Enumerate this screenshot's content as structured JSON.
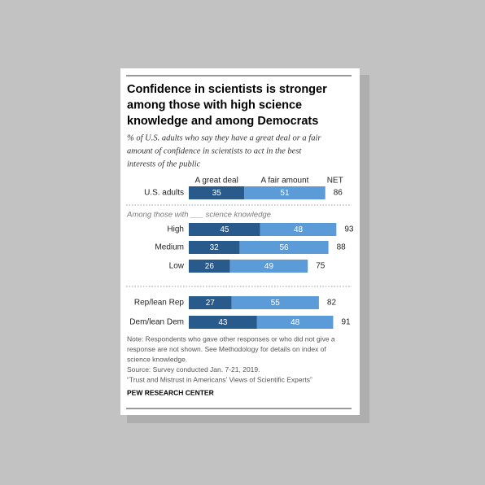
{
  "chart_data": {
    "type": "stacked-bar",
    "title": [
      "Confidence in scientists is stronger",
      "among those with high science",
      "knowledge and among Democrats"
    ],
    "subtitle": [
      "% of U.S. adults who say they have a great deal or a fair",
      "amount of confidence in scientists to act in the best",
      "interests of the public"
    ],
    "categories": [
      "U.S. adults",
      "High",
      "Medium",
      "Low",
      "Rep/lean Rep",
      "Dem/lean Dem"
    ],
    "group_label": "Among those with ___ science knowledge",
    "series": [
      {
        "name": "A great deal",
        "color": "#285a8c",
        "values": [
          35,
          45,
          32,
          26,
          27,
          43
        ]
      },
      {
        "name": "A fair amount",
        "color": "#5b9bd8",
        "values": [
          51,
          48,
          56,
          49,
          55,
          48
        ]
      }
    ],
    "net": {
      "name": "NET",
      "values": [
        86,
        93,
        88,
        75,
        82,
        91
      ]
    },
    "notes": [
      "Note: Respondents who gave other responses or who did not give a",
      "response are not shown. See Methodology for details on index of",
      "science knowledge.",
      "Source: Survey conducted Jan. 7-21, 2019.",
      "“Trust and Mistrust in Americans’ Views of Scientific Experts”"
    ],
    "footer": "PEW RESEARCH CENTER"
  }
}
